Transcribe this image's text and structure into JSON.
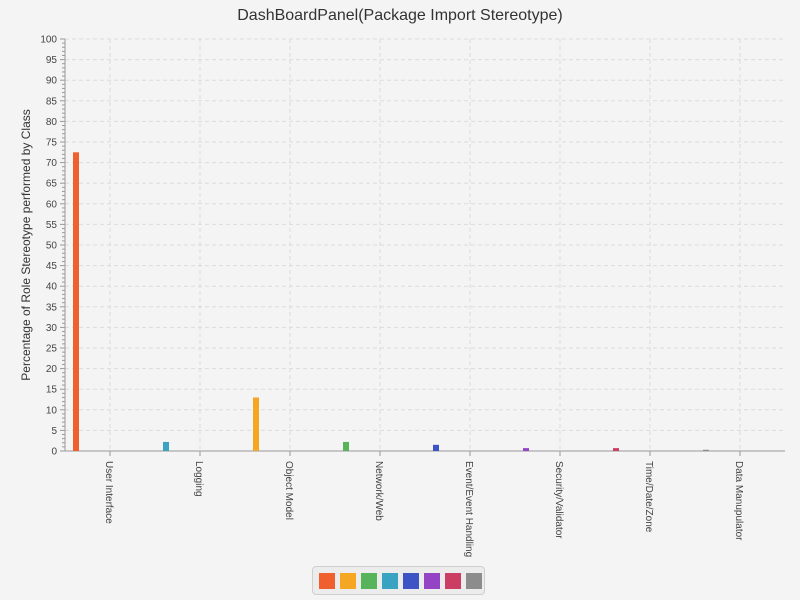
{
  "chart_data": {
    "type": "bar",
    "title": "DashBoardPanel(Package Import Stereotype)",
    "xlabel": "",
    "ylabel": "Percentage of Role Stereotype performed by Class",
    "ylim": [
      0,
      100
    ],
    "grid": true,
    "y_ticks": [
      "0",
      "5",
      "10",
      "15",
      "20",
      "25",
      "30",
      "35",
      "40",
      "45",
      "50",
      "55",
      "60",
      "65",
      "70",
      "75",
      "80",
      "85",
      "90",
      "95",
      "100"
    ],
    "categories": [
      "User Interface",
      "Logging",
      "Object Model",
      "Network/Web",
      "Event/Event Handling",
      "Security/Validator",
      "Time/Date/Zone",
      "Data Manupulator"
    ],
    "values": [
      72.5,
      2.2,
      13.0,
      2.2,
      1.5,
      0.7,
      0.7,
      0.3
    ],
    "colors": [
      "#f0602f",
      "#3aa3c2",
      "#f5a623",
      "#58b45a",
      "#3d55c4",
      "#9443c4",
      "#cc3d63",
      "#8c8c8c"
    ],
    "legend_colors": [
      "#f0602f",
      "#f5a623",
      "#58b45a",
      "#3aa3c2",
      "#3d55c4",
      "#9443c4",
      "#cc3d63",
      "#8c8c8c"
    ]
  }
}
